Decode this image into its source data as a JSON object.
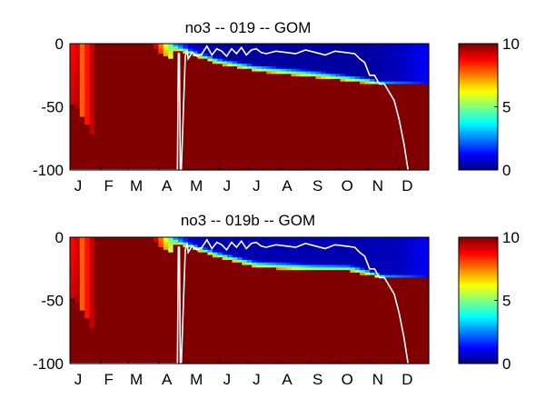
{
  "chart_data": [
    {
      "type": "heatmap",
      "title": "no3 -- 019 -- GOM",
      "xlabel": "",
      "ylabel": "",
      "x_tick_labels": [
        "J",
        "F",
        "M",
        "A",
        "M",
        "J",
        "J",
        "A",
        "S",
        "O",
        "N",
        "D"
      ],
      "xlim": [
        1,
        365
      ],
      "ylim": [
        -100,
        0
      ],
      "y_ticks": [
        0,
        -50,
        -100
      ],
      "colorbar": {
        "min": 0,
        "max": 10,
        "ticks": [
          0,
          5,
          10
        ],
        "colormap": "jet"
      },
      "colorbar_tick_labels": [
        "10",
        "5",
        "0"
      ],
      "y_tick_labels": [
        "0",
        "-50",
        "-100"
      ],
      "mixed_layer_depth_color": "#ffffff",
      "nitrate_description": {
        "winter_surface_jan": 8.5,
        "deep_value": 10,
        "summer_surface_value": 0.3,
        "nutricline_depth_apr": -8,
        "nutricline_depth_jul": -22,
        "nutricline_depth_oct": -30,
        "nutricline_depth_nov": -33
      },
      "mixed_layer_depth": {
        "day": [
          1,
          110,
          111,
          112,
          113,
          114,
          118,
          120,
          121,
          125,
          130,
          135,
          140,
          145,
          150,
          155,
          160,
          165,
          170,
          175,
          180,
          185,
          190,
          195,
          200,
          210,
          220,
          230,
          240,
          250,
          260,
          270,
          280,
          290,
          295,
          300,
          305,
          310,
          315,
          320,
          330,
          335,
          340,
          344
        ],
        "depth": [
          -100,
          -100,
          -8,
          -8,
          -100,
          -100,
          -10,
          -5,
          -12,
          -7,
          -10,
          -8,
          -2,
          -9,
          -4,
          -6,
          -10,
          -4,
          -8,
          -3,
          -9,
          -5,
          -4,
          -7,
          -8,
          -6,
          -7,
          -8,
          -5,
          -7,
          -9,
          -6,
          -7,
          -8,
          -12,
          -15,
          -25,
          -25,
          -32,
          -32,
          -45,
          -60,
          -80,
          -100
        ]
      }
    },
    {
      "type": "heatmap",
      "title": "no3 -- 019b -- GOM",
      "xlabel": "",
      "ylabel": "",
      "x_tick_labels": [
        "J",
        "F",
        "M",
        "A",
        "M",
        "J",
        "J",
        "A",
        "S",
        "O",
        "N",
        "D"
      ],
      "xlim": [
        1,
        365
      ],
      "ylim": [
        -100,
        0
      ],
      "y_ticks": [
        0,
        -50,
        -100
      ],
      "colorbar": {
        "min": 0,
        "max": 10,
        "ticks": [
          0,
          5,
          10
        ],
        "colormap": "jet"
      },
      "colorbar_tick_labels": [
        "10",
        "5",
        "0"
      ],
      "y_tick_labels": [
        "0",
        "-50",
        "-100"
      ],
      "mixed_layer_depth_color": "#ffffff",
      "nitrate_description": {
        "winter_surface_jan": 8.5,
        "deep_value": 10,
        "summer_surface_value": 0.5,
        "nutricline_depth_apr": -8,
        "nutricline_depth_jul": -24,
        "nutricline_depth_oct": -27,
        "nutricline_depth_nov": -33
      },
      "mixed_layer_depth": {
        "day": [
          1,
          110,
          111,
          112,
          113,
          114,
          118,
          120,
          121,
          125,
          130,
          135,
          140,
          145,
          150,
          155,
          160,
          165,
          170,
          175,
          180,
          185,
          190,
          195,
          200,
          210,
          220,
          230,
          240,
          250,
          260,
          270,
          280,
          290,
          295,
          300,
          305,
          310,
          315,
          320,
          330,
          335,
          340,
          344
        ],
        "depth": [
          -100,
          -100,
          -8,
          -8,
          -100,
          -100,
          -10,
          -5,
          -12,
          -7,
          -10,
          -8,
          -2,
          -9,
          -4,
          -6,
          -10,
          -4,
          -8,
          -3,
          -9,
          -5,
          -4,
          -7,
          -8,
          -6,
          -7,
          -8,
          -5,
          -7,
          -9,
          -6,
          -7,
          -8,
          -12,
          -15,
          -25,
          -25,
          -32,
          -32,
          -45,
          -60,
          -80,
          -100
        ]
      }
    }
  ]
}
